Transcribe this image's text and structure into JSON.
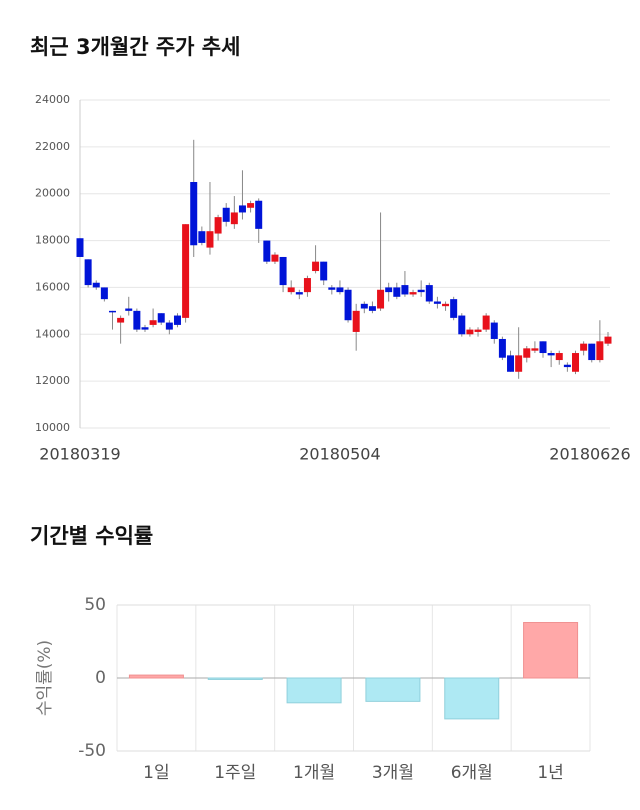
{
  "chart_data": [
    {
      "type": "candlestick",
      "title": "최근 3개월간 주가 추세",
      "categories": [
        "20180319",
        null,
        null,
        null,
        null,
        null,
        null,
        null,
        null,
        null,
        null,
        null,
        null,
        null,
        null,
        null,
        null,
        null,
        null,
        null,
        null,
        null,
        null,
        null,
        null,
        null,
        null,
        null,
        null,
        null,
        null,
        null,
        "20180504",
        null,
        null,
        null,
        null,
        null,
        null,
        null,
        null,
        null,
        null,
        null,
        null,
        null,
        null,
        null,
        null,
        null,
        null,
        null,
        null,
        null,
        null,
        null,
        null,
        null,
        null,
        null,
        null,
        null,
        null,
        "20180626",
        null,
        null
      ],
      "open": [
        18100,
        17200,
        16200,
        16000,
        15000,
        14500,
        15100,
        15000,
        14300,
        14400,
        14900,
        14500,
        14800,
        14700,
        20500,
        18400,
        17700,
        18300,
        19400,
        18700,
        19500,
        19400,
        19700,
        18000,
        17100,
        17300,
        15800,
        15800,
        15800,
        16700,
        17100,
        16000,
        16000,
        15900,
        14100,
        15300,
        15200,
        15100,
        16000,
        16000,
        16100,
        15700,
        15900,
        16100,
        15400,
        15200,
        15500,
        14800,
        14000,
        14100,
        14200,
        14500,
        13800,
        13100,
        12400,
        13000,
        13300,
        13700,
        13200,
        12900,
        12700,
        12400,
        13300,
        13600,
        12900,
        13600
      ],
      "high": [
        18100,
        17200,
        16300,
        16000,
        15000,
        14800,
        15600,
        15100,
        14400,
        15100,
        14900,
        14600,
        14900,
        18700,
        22300,
        18600,
        20500,
        19100,
        19600,
        19900,
        21000,
        19700,
        19800,
        18000,
        17500,
        17300,
        16300,
        15900,
        16500,
        17800,
        17100,
        16100,
        16300,
        16000,
        15300,
        15400,
        15400,
        19200,
        16200,
        16200,
        16700,
        15900,
        16300,
        16200,
        15600,
        15400,
        15600,
        14900,
        14300,
        14300,
        14900,
        14600,
        13900,
        13300,
        14300,
        13500,
        13700,
        13700,
        13300,
        13300,
        12800,
        13300,
        13700,
        13600,
        14600,
        14100
      ],
      "low": [
        17300,
        16000,
        15900,
        15400,
        14200,
        13600,
        14800,
        14100,
        14100,
        14300,
        14400,
        14000,
        14300,
        14500,
        17300,
        17800,
        17400,
        18000,
        18600,
        18500,
        18900,
        19200,
        17900,
        17000,
        17000,
        15800,
        15700,
        15500,
        15600,
        16600,
        16100,
        15700,
        15700,
        14500,
        13300,
        14900,
        14900,
        15000,
        15400,
        15500,
        15600,
        15600,
        15600,
        15300,
        15100,
        15000,
        14600,
        13900,
        13900,
        13900,
        14100,
        13600,
        12900,
        12400,
        12100,
        12800,
        13200,
        13000,
        12600,
        12700,
        12400,
        12300,
        13100,
        12800,
        12800,
        13500
      ],
      "close": [
        17300,
        16100,
        16000,
        15500,
        14950,
        14700,
        15000,
        14200,
        14200,
        14600,
        14500,
        14200,
        14400,
        18700,
        17800,
        17900,
        18400,
        19000,
        18800,
        19200,
        19200,
        19600,
        18500,
        17100,
        17400,
        16100,
        16000,
        15700,
        16400,
        17100,
        16300,
        15900,
        15800,
        14600,
        15000,
        15100,
        15000,
        15900,
        15800,
        15600,
        15700,
        15800,
        15800,
        15400,
        15300,
        15300,
        14700,
        14000,
        14200,
        14200,
        14800,
        13800,
        13000,
        12400,
        13100,
        13400,
        13400,
        13200,
        13100,
        13200,
        12600,
        13200,
        13600,
        12900,
        13700,
        13900
      ],
      "up_color": "#e8111b",
      "down_color": "#0014d8",
      "ylim": [
        10000,
        24000
      ],
      "yticks": [
        10000,
        12000,
        14000,
        16000,
        18000,
        20000,
        22000,
        24000
      ],
      "grid": true
    },
    {
      "type": "bar",
      "title": "기간별 수익률",
      "ylabel": "수익률(%)",
      "categories": [
        "1일",
        "1주일",
        "1개월",
        "3개월",
        "6개월",
        "1년"
      ],
      "values": [
        2,
        -1,
        -17,
        -16,
        -28,
        38
      ],
      "positive_color": "#ffa8a8",
      "negative_color": "#aee9f3",
      "ylim": [
        -50,
        50
      ],
      "yticks": [
        -50,
        0,
        50
      ],
      "grid": true
    }
  ]
}
